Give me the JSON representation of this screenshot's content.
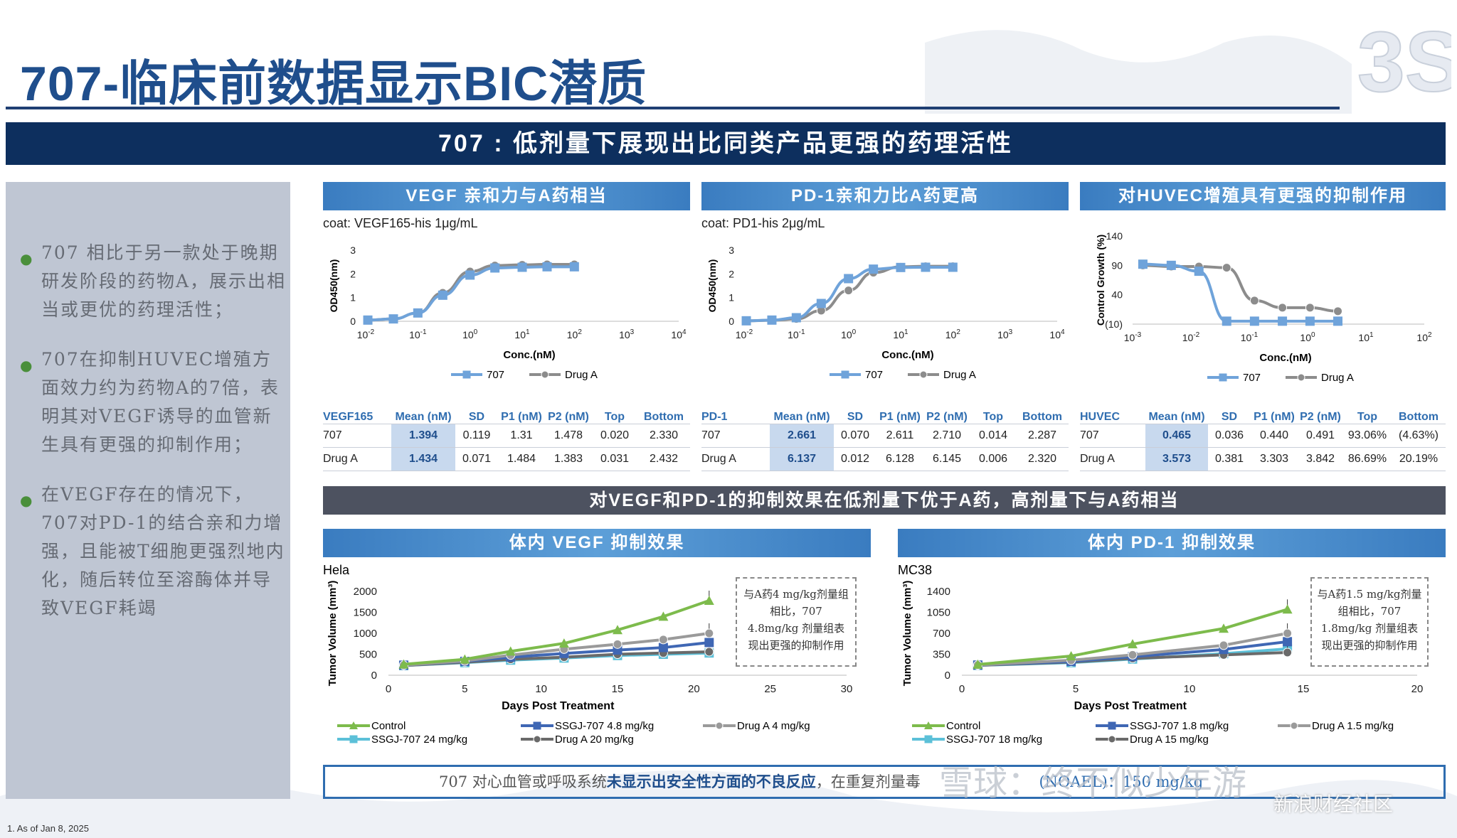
{
  "page": {
    "title": "707-临床前数据显示BIC潜质",
    "banner": "707 : 低剂量下展现出比同类产品更强的药理活性",
    "footnote": "1.   As of Jan 8, 2025",
    "logo_text": "3S",
    "watermark_1": "雪球：终不似少年游",
    "watermark_2": "新浪财经社区",
    "colors": {
      "navy": "#0d2f5e",
      "blue": "#2f6db0",
      "light_blue": "#6fa3da",
      "gray": "#8c8c8c",
      "green": "#7dbb4c"
    }
  },
  "bullets": [
    "707 相比于另一款处于晚期研发阶段的药物A，展示出相当或更优的药理活性；",
    "707在抑制HUVEC增殖方面效力约为药物A的7倍，表明其对VEGF诱导的血管新生具有更强的抑制作用；",
    "在VEGF存在的情况下，707对PD-1的结合亲和力增强，且能被T细胞更强烈地内化，随后转位至溶酶体并导致VEGF耗竭"
  ],
  "sections": {
    "vegf_affinity": "VEGF 亲和力与A药相当",
    "pd1_affinity": "PD-1亲和力比A药更高",
    "huvec": "对HUVEC增殖具有更强的抑制作用",
    "mid_banner": "对VEGF和PD-1的抑制效果在低剂量下优于A药，高剂量下与A药相当",
    "in_vivo_vegf": "体内 VEGF 抑制效果",
    "in_vivo_pd1": "体内 PD-1 抑制效果"
  },
  "coats": {
    "vegf": "coat: VEGF165-his 1μg/mL",
    "pd1": "coat: PD1-his 2μg/mL"
  },
  "tables": {
    "headers": [
      "Mean (nM)",
      "SD",
      "P1 (nM)",
      "P2 (nM)",
      "Top",
      "Bottom"
    ],
    "vegf": {
      "name": "VEGF165",
      "rows": [
        [
          "707",
          "1.394",
          "0.119",
          "1.31",
          "1.478",
          "0.020",
          "2.330"
        ],
        [
          "Drug A",
          "1.434",
          "0.071",
          "1.484",
          "1.383",
          "0.031",
          "2.432"
        ]
      ]
    },
    "pd1": {
      "name": "PD-1",
      "rows": [
        [
          "707",
          "2.661",
          "0.070",
          "2.611",
          "2.710",
          "0.014",
          "2.287"
        ],
        [
          "Drug A",
          "6.137",
          "0.012",
          "6.128",
          "6.145",
          "0.006",
          "2.320"
        ]
      ]
    },
    "huvec": {
      "name": "HUVEC",
      "rows": [
        [
          "707",
          "0.465",
          "0.036",
          "0.440",
          "0.491",
          "93.06%",
          "(4.63%)"
        ],
        [
          "Drug A",
          "3.573",
          "0.381",
          "3.303",
          "3.842",
          "86.69%",
          "20.19%"
        ]
      ]
    }
  },
  "notes": {
    "vegf": [
      "与A药4 mg/kg剂量组",
      "相比，707",
      "4.8mg/kg 剂量组表",
      "现出更强的抑制作用"
    ],
    "pd1": [
      "与A药1.5 mg/kg剂量",
      "组相比，707",
      "1.8mg/kg 剂量组表",
      "现出更强的抑制作用"
    ]
  },
  "safety": {
    "pre": "707 对心血管或呼吸系统",
    "bold": "未显示出安全性方面的不良反应",
    "post": "，在重复剂量毒",
    "tail": "(NOAEL)：150 mg/kg"
  },
  "chart_data": [
    {
      "id": "vegf_binding",
      "type": "line",
      "xscale": "log",
      "xlabel": "Conc.(nM)",
      "ylabel": "OD450(nm)",
      "xticks": [
        "10-2",
        "10-1",
        "100",
        "101",
        "102",
        "103",
        "104"
      ],
      "yticks": [
        "0",
        "1",
        "2",
        "3"
      ],
      "ylim": [
        0,
        3
      ],
      "xlim_log10": [
        -2,
        4
      ],
      "series": [
        {
          "name": "707",
          "color": "#6fa3da",
          "marker": "square",
          "x": [
            0.011,
            0.034,
            0.1,
            0.3,
            1,
            3,
            10,
            30,
            100
          ],
          "y": [
            0.05,
            0.1,
            0.35,
            1.1,
            1.95,
            2.25,
            2.28,
            2.3,
            2.3
          ]
        },
        {
          "name": "Drug A",
          "color": "#8c8c8c",
          "marker": "circle",
          "x": [
            0.011,
            0.034,
            0.1,
            0.3,
            1,
            3,
            10,
            30,
            100
          ],
          "y": [
            0.05,
            0.1,
            0.35,
            1.2,
            2.1,
            2.35,
            2.38,
            2.4,
            2.4
          ]
        }
      ]
    },
    {
      "id": "pd1_binding",
      "type": "line",
      "xscale": "log",
      "xlabel": "Conc.(nM)",
      "ylabel": "OD450(nm)",
      "xticks": [
        "10-2",
        "10-1",
        "100",
        "101",
        "102",
        "103",
        "104"
      ],
      "yticks": [
        "0",
        "1",
        "2",
        "3"
      ],
      "ylim": [
        0,
        3
      ],
      "xlim_log10": [
        -2,
        4
      ],
      "series": [
        {
          "name": "707",
          "color": "#6fa3da",
          "marker": "square",
          "x": [
            0.011,
            0.034,
            0.1,
            0.3,
            1,
            3,
            10,
            30,
            100
          ],
          "y": [
            0.02,
            0.05,
            0.15,
            0.75,
            1.8,
            2.2,
            2.27,
            2.28,
            2.28
          ]
        },
        {
          "name": "Drug A",
          "color": "#8c8c8c",
          "marker": "circle",
          "x": [
            0.011,
            0.034,
            0.1,
            0.3,
            1,
            3,
            10,
            30,
            100
          ],
          "y": [
            0.02,
            0.04,
            0.1,
            0.45,
            1.3,
            2.05,
            2.3,
            2.32,
            2.32
          ]
        }
      ]
    },
    {
      "id": "huvec",
      "type": "line",
      "xscale": "log",
      "xlabel": "Conc.(nM)",
      "ylabel": "Control Growth (%)",
      "xticks": [
        "10-3",
        "10-2",
        "10-1",
        "100",
        "101",
        "102"
      ],
      "yticks": [
        "(10)",
        "40",
        "90",
        "140"
      ],
      "ylim": [
        -10,
        140
      ],
      "xlim_log10": [
        -3,
        2
      ],
      "series": [
        {
          "name": "707",
          "color": "#6fa3da",
          "marker": "square",
          "x": [
            0.0015,
            0.0046,
            0.0137,
            0.041,
            0.123,
            0.37,
            1.1,
            3.3
          ],
          "y": [
            92,
            90,
            80,
            -5,
            -5,
            -5,
            -5,
            -5
          ]
        },
        {
          "name": "Drug A",
          "color": "#8c8c8c",
          "marker": "circle",
          "x": [
            0.0015,
            0.0046,
            0.0137,
            0.041,
            0.123,
            0.37,
            1.1,
            3.3
          ],
          "y": [
            90,
            88,
            88,
            86,
            30,
            18,
            18,
            12
          ]
        }
      ]
    },
    {
      "id": "invivo_vegf",
      "type": "line",
      "title": "Hela",
      "xlabel": "Days Post Treatment",
      "ylabel": "Tumor Volume (mm³)",
      "xticks": [
        "0",
        "5",
        "10",
        "15",
        "20",
        "25",
        "30"
      ],
      "yticks": [
        "0",
        "500",
        "1000",
        "1500",
        "2000"
      ],
      "xlim": [
        0,
        30
      ],
      "ylim": [
        0,
        2000
      ],
      "series": [
        {
          "name": "Control",
          "color": "#7dbb4c",
          "marker": "triangle",
          "x": [
            1,
            5,
            8,
            11.5,
            15,
            18,
            21
          ],
          "y": [
            260,
            380,
            570,
            760,
            1080,
            1400,
            1780
          ]
        },
        {
          "name": "SSGJ-707 4.8 mg/kg",
          "color": "#3f67b4",
          "marker": "square",
          "x": [
            1,
            5,
            8,
            11.5,
            15,
            18,
            21
          ],
          "y": [
            240,
            330,
            430,
            520,
            600,
            660,
            780
          ]
        },
        {
          "name": "Drug A 4 mg/kg",
          "color": "#9a9a9a",
          "marker": "circle",
          "x": [
            1,
            5,
            8,
            11.5,
            15,
            18,
            21
          ],
          "y": [
            240,
            340,
            480,
            620,
            740,
            850,
            1000
          ]
        },
        {
          "name": "SSGJ-707 24 mg/kg",
          "color": "#5cc0d8",
          "marker": "square",
          "x": [
            1,
            5,
            8,
            11.5,
            15,
            18,
            21
          ],
          "y": [
            230,
            300,
            360,
            410,
            470,
            500,
            530
          ]
        },
        {
          "name": "Drug A 20 mg/kg",
          "color": "#6a6a6a",
          "marker": "circle",
          "x": [
            1,
            5,
            8,
            11.5,
            15,
            18,
            21
          ],
          "y": [
            230,
            310,
            380,
            430,
            500,
            530,
            560
          ]
        }
      ]
    },
    {
      "id": "invivo_pd1",
      "type": "line",
      "title": "MC38",
      "xlabel": "Days Post Treatment",
      "ylabel": "Tumor Volume (mm³)",
      "xticks": [
        "0",
        "5",
        "10",
        "15",
        "20"
      ],
      "yticks": [
        "0",
        "350",
        "700",
        "1050",
        "1400"
      ],
      "xlim": [
        0,
        20
      ],
      "ylim": [
        0,
        1400
      ],
      "series": [
        {
          "name": "Control",
          "color": "#7dbb4c",
          "marker": "triangle",
          "x": [
            0.7,
            4.8,
            7.5,
            11.5,
            14.3
          ],
          "y": [
            180,
            320,
            520,
            780,
            1100
          ]
        },
        {
          "name": "SSGJ-707 1.8 mg/kg",
          "color": "#3f67b4",
          "marker": "square",
          "x": [
            0.7,
            4.8,
            7.5,
            11.5,
            14.3
          ],
          "y": [
            170,
            230,
            310,
            430,
            560
          ]
        },
        {
          "name": "Drug A 1.5 mg/kg",
          "color": "#9a9a9a",
          "marker": "circle",
          "x": [
            0.7,
            4.8,
            7.5,
            11.5,
            14.3
          ],
          "y": [
            170,
            250,
            340,
            500,
            700
          ]
        },
        {
          "name": "SSGJ-707 18 mg/kg",
          "color": "#5cc0d8",
          "marker": "square",
          "x": [
            0.7,
            4.8,
            7.5,
            11.5,
            14.3
          ],
          "y": [
            165,
            210,
            270,
            360,
            440
          ]
        },
        {
          "name": "Drug A 15 mg/kg",
          "color": "#6a6a6a",
          "marker": "circle",
          "x": [
            0.7,
            4.8,
            7.5,
            11.5,
            14.3
          ],
          "y": [
            165,
            220,
            280,
            340,
            380
          ]
        }
      ]
    }
  ]
}
